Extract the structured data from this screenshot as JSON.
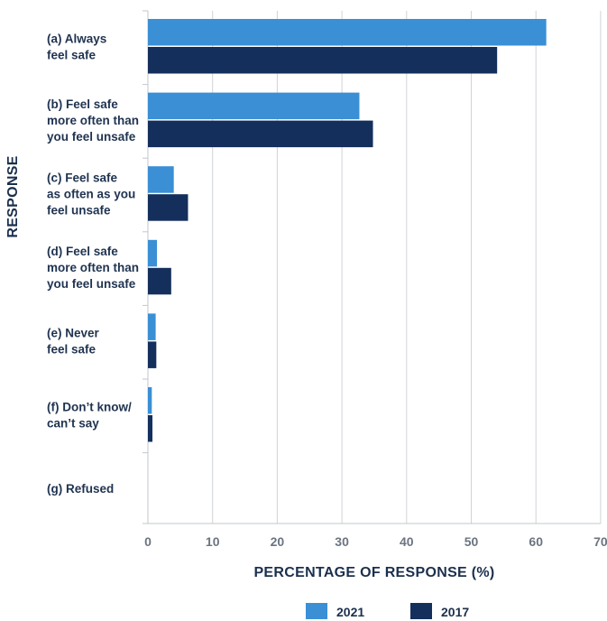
{
  "chart_data": {
    "type": "bar",
    "orientation": "horizontal",
    "categories": [
      [
        "(a)  Always",
        "feel safe"
      ],
      [
        "(b)  Feel safe",
        "more often than",
        "you feel unsafe"
      ],
      [
        "(c)  Feel safe",
        "as often as you",
        "feel unsafe"
      ],
      [
        "(d)  Feel safe",
        "more often than",
        "you feel unsafe"
      ],
      [
        "(e)  Never",
        "feel safe"
      ],
      [
        "(f)  Don’t know/",
        "can’t say"
      ],
      [
        "(g)  Refused"
      ]
    ],
    "series": [
      {
        "name": "2021",
        "color": "#3a8fd5",
        "values": [
          61.6,
          32.7,
          4.0,
          1.4,
          1.2,
          0.6,
          0
        ]
      },
      {
        "name": "2017",
        "color": "#142f5c",
        "values": [
          54.0,
          34.8,
          6.2,
          3.6,
          1.3,
          0.7,
          0
        ]
      }
    ],
    "title": "",
    "xlabel": "PERCENTAGE OF RESPONSE (%)",
    "ylabel": "RESPONSE",
    "xlim": [
      0,
      70
    ],
    "xticks": [
      0,
      10,
      20,
      30,
      40,
      50,
      60,
      70
    ],
    "grid": true,
    "legend_position": "bottom"
  }
}
